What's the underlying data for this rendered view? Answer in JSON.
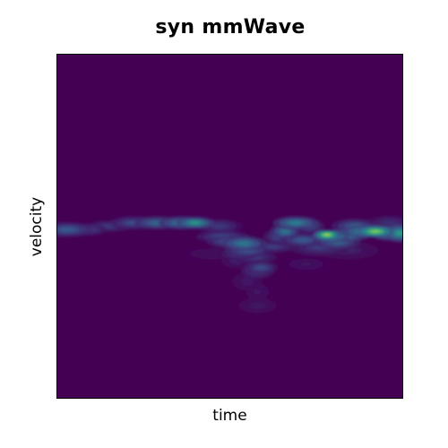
{
  "chart_data": {
    "type": "heatmap",
    "title": "syn mmWave",
    "xlabel": "time",
    "ylabel": "velocity",
    "colormap": "viridis",
    "colormap_stops": [
      "#440154",
      "#3b528b",
      "#21918c",
      "#5ec962",
      "#fde725"
    ],
    "background_color": "#440154",
    "frame_color": "#000000",
    "x_ticks": [],
    "y_ticks": [],
    "grid": false,
    "x_range": [
      0,
      1
    ],
    "y_range": [
      0,
      1
    ],
    "value_range": [
      0,
      1
    ],
    "blobs": [
      {
        "x": 0.03,
        "y": 0.51,
        "intensity": 0.3,
        "sx": 0.035,
        "sy": 0.01
      },
      {
        "x": 0.09,
        "y": 0.51,
        "intensity": 0.22,
        "sx": 0.025,
        "sy": 0.008
      },
      {
        "x": 0.15,
        "y": 0.5,
        "intensity": 0.18,
        "sx": 0.03,
        "sy": 0.008
      },
      {
        "x": 0.22,
        "y": 0.49,
        "intensity": 0.25,
        "sx": 0.03,
        "sy": 0.009
      },
      {
        "x": 0.29,
        "y": 0.49,
        "intensity": 0.35,
        "sx": 0.03,
        "sy": 0.009
      },
      {
        "x": 0.36,
        "y": 0.49,
        "intensity": 0.4,
        "sx": 0.03,
        "sy": 0.009
      },
      {
        "x": 0.4,
        "y": 0.49,
        "intensity": 0.55,
        "sx": 0.025,
        "sy": 0.008
      },
      {
        "x": 0.47,
        "y": 0.5,
        "intensity": 0.18,
        "sx": 0.03,
        "sy": 0.01
      },
      {
        "x": 0.48,
        "y": 0.53,
        "intensity": 0.25,
        "sx": 0.035,
        "sy": 0.008
      },
      {
        "x": 0.5,
        "y": 0.545,
        "intensity": 0.3,
        "sx": 0.03,
        "sy": 0.008
      },
      {
        "x": 0.54,
        "y": 0.55,
        "intensity": 0.42,
        "sx": 0.03,
        "sy": 0.01
      },
      {
        "x": 0.55,
        "y": 0.57,
        "intensity": 0.3,
        "sx": 0.03,
        "sy": 0.009
      },
      {
        "x": 0.53,
        "y": 0.58,
        "intensity": 0.22,
        "sx": 0.025,
        "sy": 0.008
      },
      {
        "x": 0.57,
        "y": 0.59,
        "intensity": 0.2,
        "sx": 0.03,
        "sy": 0.008
      },
      {
        "x": 0.59,
        "y": 0.62,
        "intensity": 0.25,
        "sx": 0.022,
        "sy": 0.009
      },
      {
        "x": 0.58,
        "y": 0.63,
        "intensity": 0.22,
        "sx": 0.022,
        "sy": 0.01
      },
      {
        "x": 0.52,
        "y": 0.6,
        "intensity": 0.1,
        "sx": 0.02,
        "sy": 0.01
      },
      {
        "x": 0.55,
        "y": 0.66,
        "intensity": 0.08,
        "sx": 0.02,
        "sy": 0.012
      },
      {
        "x": 0.58,
        "y": 0.69,
        "intensity": 0.06,
        "sx": 0.02,
        "sy": 0.015
      },
      {
        "x": 0.58,
        "y": 0.73,
        "intensity": 0.08,
        "sx": 0.025,
        "sy": 0.01
      },
      {
        "x": 0.62,
        "y": 0.56,
        "intensity": 0.2,
        "sx": 0.035,
        "sy": 0.008
      },
      {
        "x": 0.64,
        "y": 0.53,
        "intensity": 0.25,
        "sx": 0.02,
        "sy": 0.01
      },
      {
        "x": 0.66,
        "y": 0.515,
        "intensity": 0.4,
        "sx": 0.02,
        "sy": 0.01
      },
      {
        "x": 0.69,
        "y": 0.49,
        "intensity": 0.45,
        "sx": 0.03,
        "sy": 0.009
      },
      {
        "x": 0.71,
        "y": 0.54,
        "intensity": 0.3,
        "sx": 0.03,
        "sy": 0.009
      },
      {
        "x": 0.73,
        "y": 0.5,
        "intensity": 0.25,
        "sx": 0.02,
        "sy": 0.01
      },
      {
        "x": 0.76,
        "y": 0.56,
        "intensity": 0.2,
        "sx": 0.04,
        "sy": 0.012
      },
      {
        "x": 0.79,
        "y": 0.53,
        "intensity": 0.55,
        "sx": 0.025,
        "sy": 0.008
      },
      {
        "x": 0.78,
        "y": 0.525,
        "intensity": 0.85,
        "sx": 0.018,
        "sy": 0.007
      },
      {
        "x": 0.81,
        "y": 0.545,
        "intensity": 0.35,
        "sx": 0.03,
        "sy": 0.01
      },
      {
        "x": 0.84,
        "y": 0.525,
        "intensity": 0.45,
        "sx": 0.03,
        "sy": 0.009
      },
      {
        "x": 0.86,
        "y": 0.5,
        "intensity": 0.3,
        "sx": 0.03,
        "sy": 0.01
      },
      {
        "x": 0.89,
        "y": 0.515,
        "intensity": 0.55,
        "sx": 0.03,
        "sy": 0.008
      },
      {
        "x": 0.92,
        "y": 0.515,
        "intensity": 0.8,
        "sx": 0.025,
        "sy": 0.008
      },
      {
        "x": 0.96,
        "y": 0.52,
        "intensity": 0.5,
        "sx": 0.025,
        "sy": 0.01
      },
      {
        "x": 0.99,
        "y": 0.52,
        "intensity": 0.55,
        "sx": 0.02,
        "sy": 0.012
      },
      {
        "x": 0.96,
        "y": 0.49,
        "intensity": 0.15,
        "sx": 0.03,
        "sy": 0.01
      },
      {
        "x": 0.84,
        "y": 0.57,
        "intensity": 0.1,
        "sx": 0.04,
        "sy": 0.012
      },
      {
        "x": 0.72,
        "y": 0.61,
        "intensity": 0.06,
        "sx": 0.03,
        "sy": 0.01
      },
      {
        "x": 0.45,
        "y": 0.58,
        "intensity": 0.05,
        "sx": 0.04,
        "sy": 0.01
      }
    ]
  }
}
